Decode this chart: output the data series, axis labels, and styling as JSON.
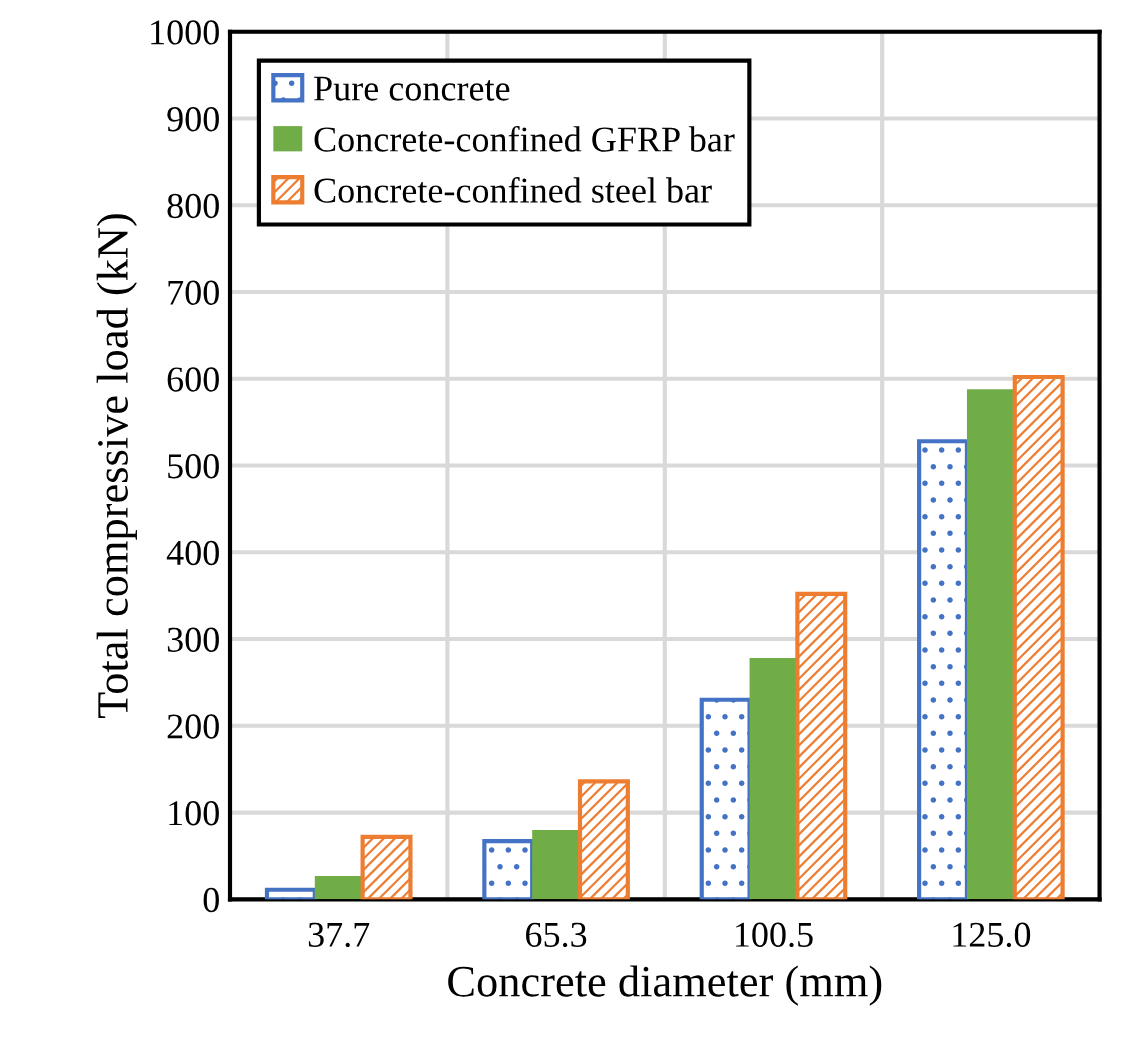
{
  "chart_data": {
    "type": "bar",
    "xlabel": "Concrete diameter (mm)",
    "ylabel": "Total compressive load (kN)",
    "categories": [
      "37.7",
      "65.3",
      "100.5",
      "125.0"
    ],
    "series": [
      {
        "name": "Pure concrete",
        "color": "#4472c4",
        "values": [
          11,
          67,
          230,
          528
        ]
      },
      {
        "name": "Concrete-confined GFRP bar",
        "color": "#70ad47",
        "values": [
          27,
          80,
          278,
          588
        ]
      },
      {
        "name": "Concrete-confined steel bar",
        "color": "#ed7d31",
        "values": [
          72,
          136,
          352,
          602
        ]
      }
    ],
    "ylim": [
      0,
      1000
    ],
    "yticks": [
      0,
      100,
      200,
      300,
      400,
      500,
      600,
      700,
      800,
      900,
      1000
    ],
    "grid": true,
    "legend": "top left"
  }
}
